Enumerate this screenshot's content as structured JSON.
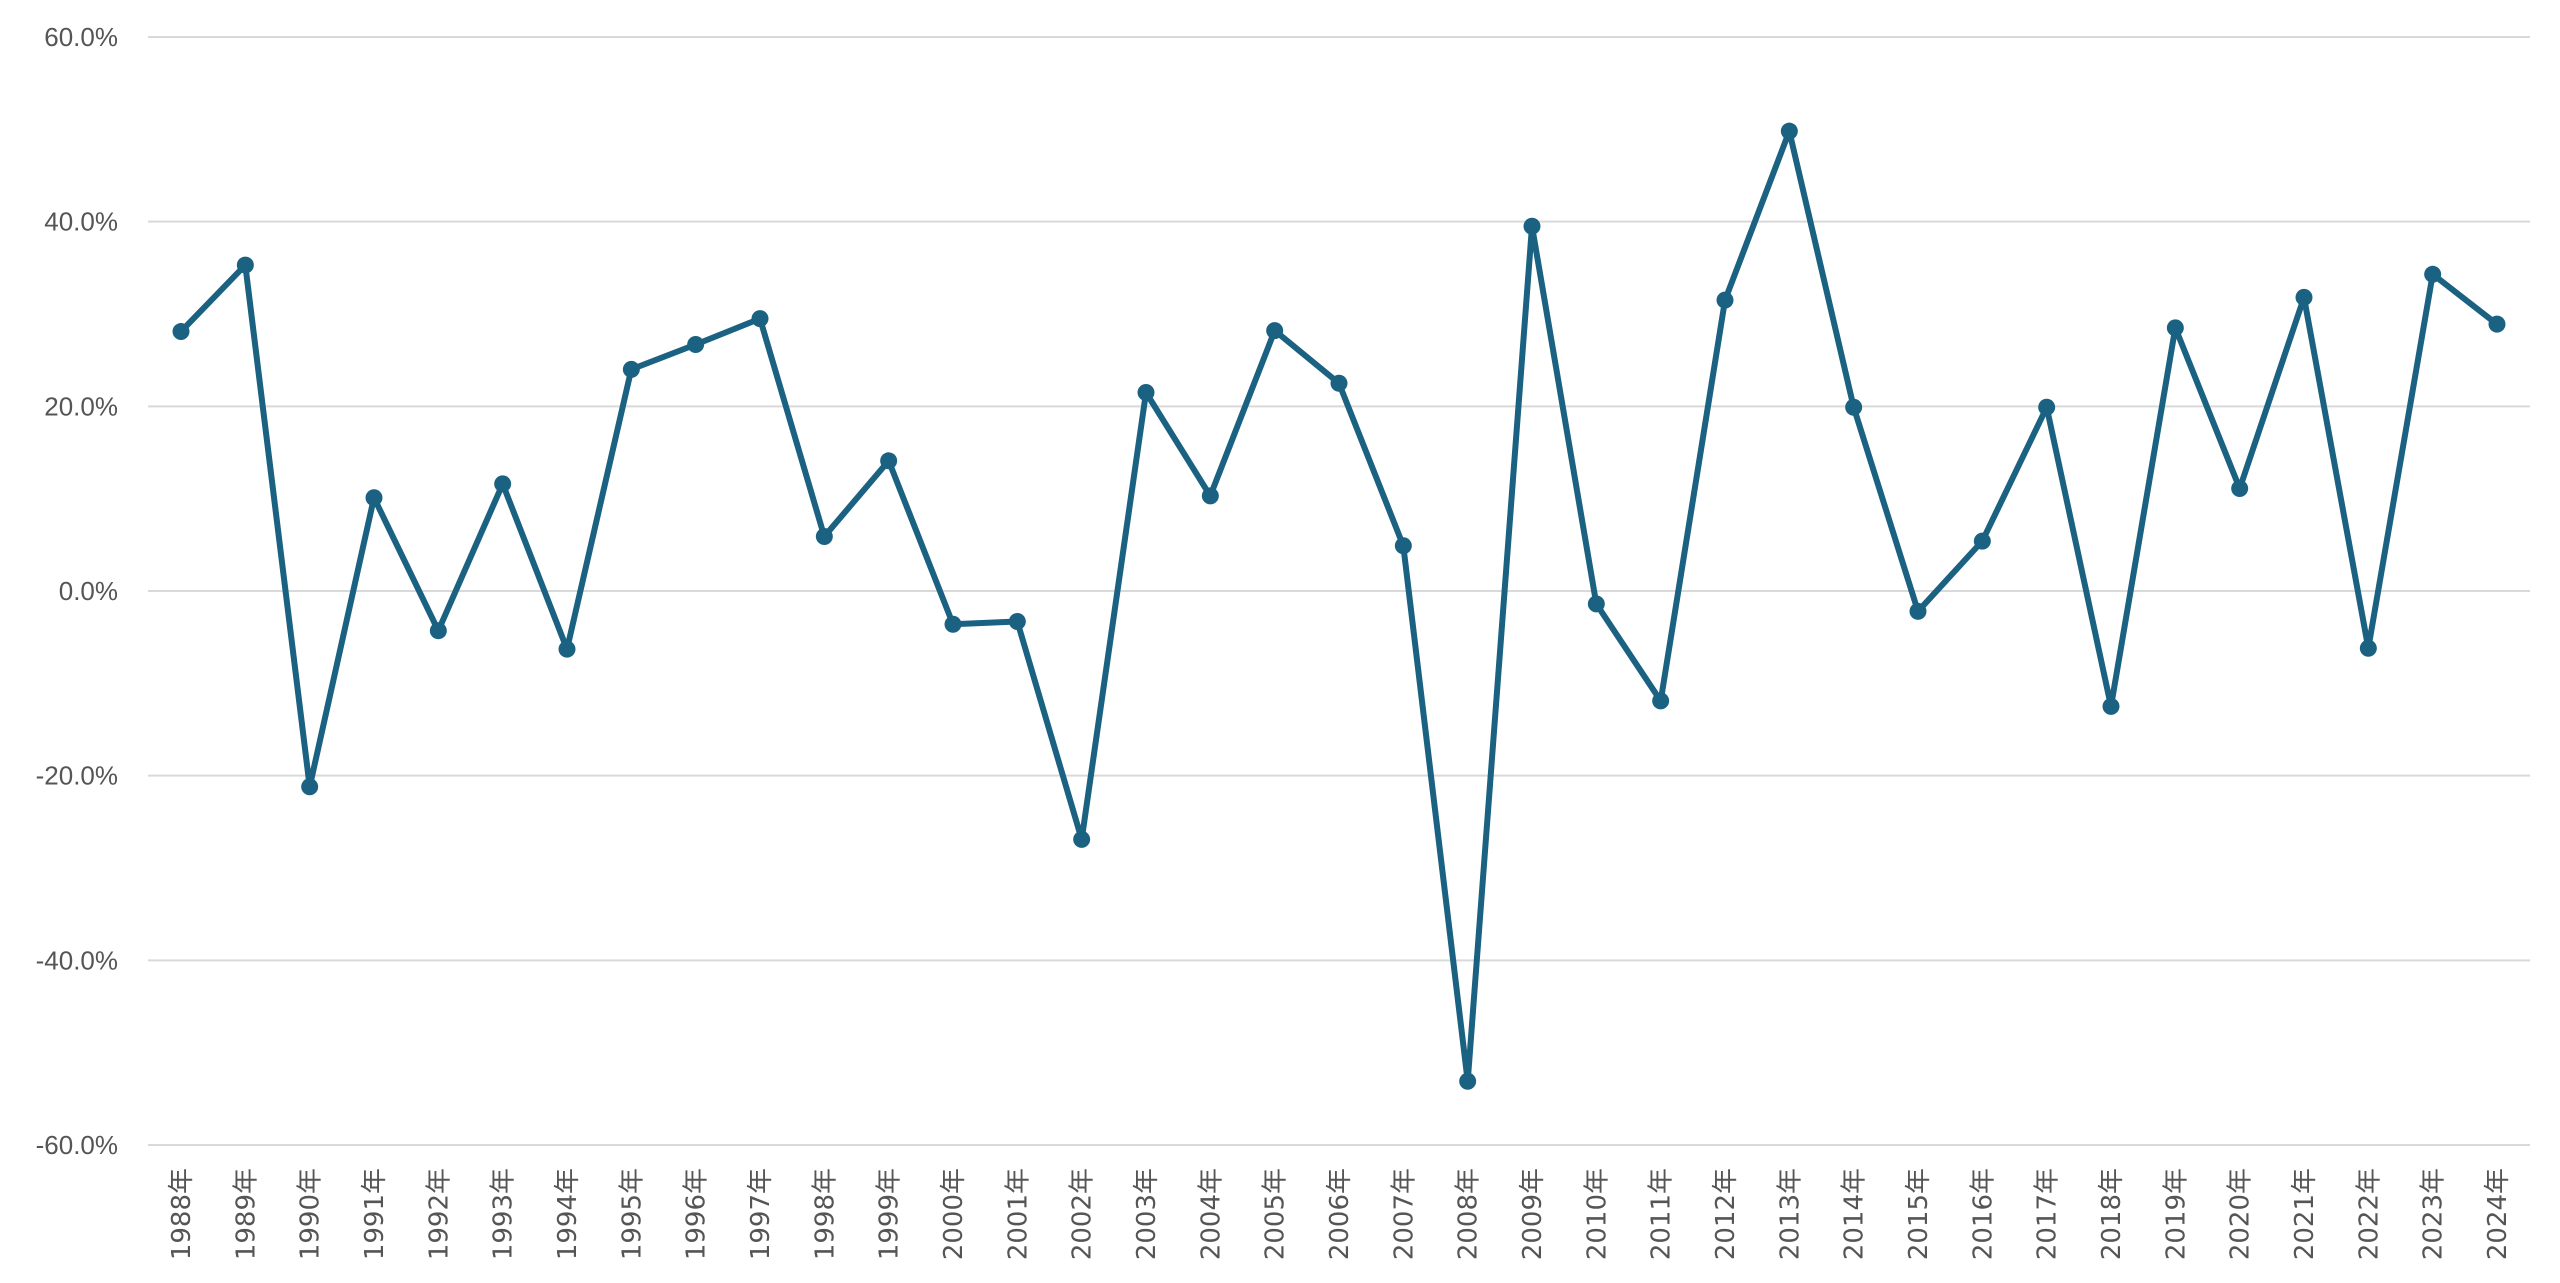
{
  "chart_data": {
    "type": "line",
    "title": "",
    "xlabel": "",
    "ylabel": "",
    "ylim": [
      -60,
      60
    ],
    "ytick_step": 20,
    "ytick_format": "percent_1dp",
    "grid": "horizontal",
    "legend": "none",
    "colors": {
      "series": "#1b6282",
      "grid": "#d9d9d9",
      "tick": "#555555"
    },
    "categories": [
      "1988年",
      "1989年",
      "1990年",
      "1991年",
      "1992年",
      "1993年",
      "1994年",
      "1995年",
      "1996年",
      "1997年",
      "1998年",
      "1999年",
      "2000年",
      "2001年",
      "2002年",
      "2003年",
      "2004年",
      "2005年",
      "2006年",
      "2007年",
      "2008年",
      "2009年",
      "2010年",
      "2011年",
      "2012年",
      "2013年",
      "2014年",
      "2015年",
      "2016年",
      "2017年",
      "2018年",
      "2019年",
      "2020年",
      "2021年",
      "2022年",
      "2023年",
      "2024年"
    ],
    "series": [
      {
        "values": [
          28.1,
          35.3,
          -21.2,
          10.1,
          -4.3,
          11.6,
          -6.3,
          24.0,
          26.7,
          29.5,
          5.9,
          14.1,
          -3.6,
          -3.3,
          -26.9,
          21.5,
          10.3,
          28.2,
          22.5,
          4.9,
          -53.1,
          39.5,
          -1.4,
          -11.9,
          31.5,
          49.8,
          19.9,
          -2.2,
          5.4,
          19.9,
          -12.5,
          28.5,
          11.1,
          31.8,
          -6.2,
          34.3,
          28.9
        ]
      }
    ]
  }
}
